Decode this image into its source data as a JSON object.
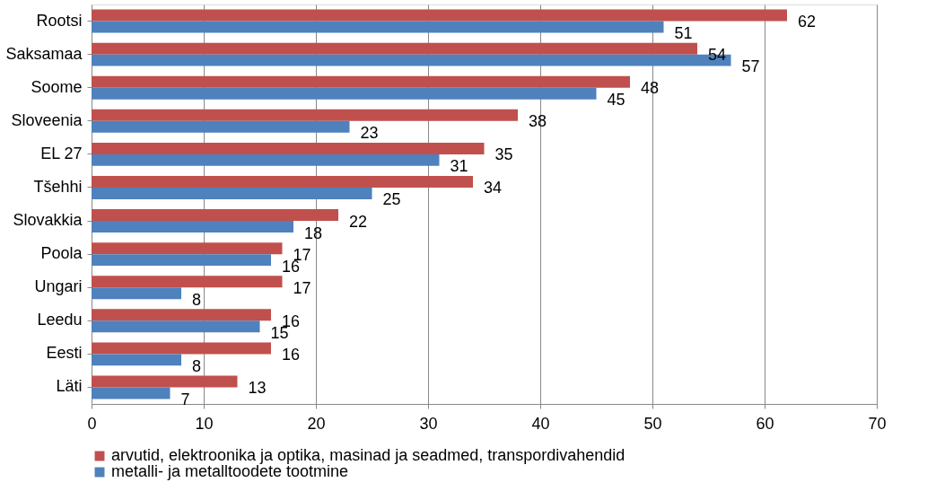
{
  "chart_data": {
    "type": "bar",
    "orientation": "horizontal",
    "categories": [
      "Rootsi",
      "Saksamaa",
      "Soome",
      "Sloveenia",
      "EL 27",
      "Tšehhi",
      "Slovakkia",
      "Poola",
      "Ungari",
      "Leedu",
      "Eesti",
      "Läti"
    ],
    "series": [
      {
        "name": "arvutid, elektroonika ja optika, masinad ja seadmed, transpordivahendid",
        "color": "#c0504d",
        "values": [
          62,
          54,
          48,
          38,
          35,
          34,
          22,
          17,
          17,
          16,
          16,
          13
        ]
      },
      {
        "name": "metalli- ja metalltoodete tootmine",
        "color": "#4f81bd",
        "values": [
          51,
          57,
          45,
          23,
          31,
          25,
          18,
          16,
          8,
          15,
          8,
          7
        ]
      }
    ],
    "xlim": [
      0,
      70
    ],
    "xticks": [
      0,
      10,
      20,
      30,
      40,
      50,
      60,
      70
    ],
    "grid": "x",
    "legend": "bottom",
    "data_labels": true
  }
}
